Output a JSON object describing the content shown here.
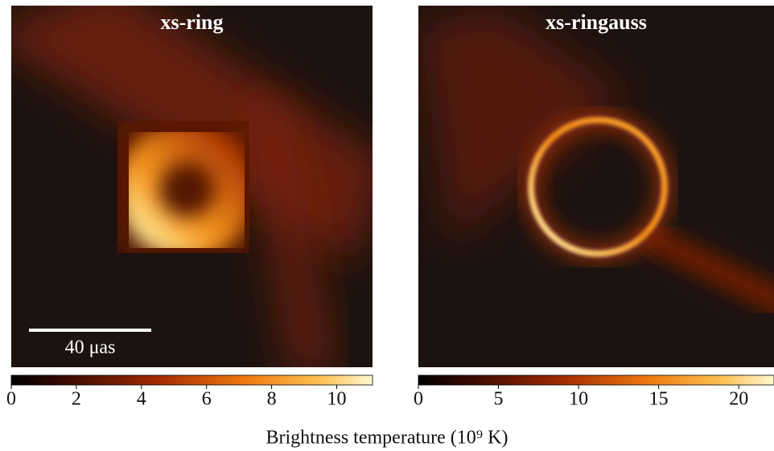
{
  "chart_data": [
    {
      "type": "image",
      "title": "xs-ring",
      "colorbar": {
        "clim": [
          0,
          11.1
        ],
        "ticks": [
          0,
          2,
          4,
          6,
          8,
          10
        ]
      }
    },
    {
      "type": "image",
      "title": "xs-ringauss",
      "colorbar": {
        "clim": [
          0,
          22.2
        ],
        "ticks": [
          0,
          5,
          10,
          15,
          20
        ]
      }
    }
  ],
  "scale_bar_label": "40 μas",
  "colorbar_label": "Brightness temperature (10⁹ K)"
}
